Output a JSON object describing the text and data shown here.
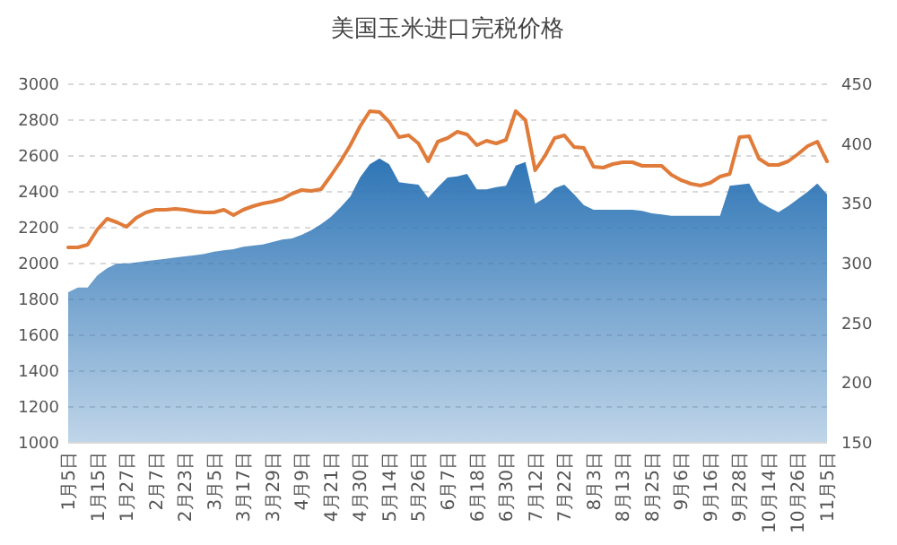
{
  "chart_data": {
    "type": "line",
    "title": "美国玉米进口完税价格",
    "categories": [
      "1月5日",
      null,
      null,
      "1月15日",
      null,
      null,
      "1月27日",
      null,
      null,
      "2月7日",
      null,
      null,
      "2月23日",
      null,
      null,
      "3月5日",
      null,
      null,
      "3月17日",
      null,
      null,
      "3月29日",
      null,
      null,
      "4月9日",
      null,
      null,
      "4月21日",
      null,
      null,
      "4月30日",
      null,
      null,
      "5月14日",
      null,
      null,
      "5月26日",
      null,
      null,
      "6月7日",
      null,
      null,
      "6月18日",
      null,
      null,
      "6月30日",
      null,
      null,
      "7月12日",
      null,
      null,
      "7月22日",
      null,
      null,
      "8月3日",
      null,
      null,
      "8月13日",
      null,
      null,
      "8月25日",
      null,
      null,
      "9月6日",
      null,
      null,
      "9月16日",
      null,
      null,
      "9月28日",
      null,
      null,
      "10月14日",
      null,
      null,
      "10月26日",
      null,
      null,
      "11月5日"
    ],
    "ylim": [
      1000,
      3000
    ],
    "yticks": [
      1000,
      1200,
      1400,
      1600,
      1800,
      2000,
      2200,
      2400,
      2600,
      2800,
      3000
    ],
    "y2lim": [
      150,
      450
    ],
    "y2ticks": [
      150,
      200,
      250,
      300,
      350,
      400,
      450
    ],
    "grid": "y",
    "series": [
      {
        "type": "area",
        "axis": "y2",
        "color": "#2e75b6",
        "values": [
          276,
          280,
          280,
          290,
          296,
          300,
          300,
          301,
          302,
          303,
          304,
          305,
          306,
          307,
          308,
          310,
          311,
          312,
          314,
          315,
          316,
          318,
          320,
          321,
          324,
          328,
          333,
          339,
          347,
          356,
          372,
          383,
          388,
          383,
          368,
          367,
          366,
          355,
          364,
          372,
          373,
          375,
          362,
          362,
          364,
          365,
          382,
          385,
          350,
          355,
          363,
          366,
          358,
          349,
          345,
          345,
          345,
          345,
          345,
          344,
          342,
          341,
          340,
          340,
          340,
          340,
          340,
          340,
          365,
          366,
          367,
          352,
          347,
          343,
          348,
          354,
          360,
          367,
          358
        ]
      },
      {
        "axis": "y",
        "color": "#e07b39",
        "values": [
          2090,
          2090,
          2105,
          2190,
          2250,
          2230,
          2205,
          2255,
          2285,
          2300,
          2300,
          2305,
          2300,
          2290,
          2285,
          2285,
          2300,
          2270,
          2300,
          2320,
          2335,
          2345,
          2360,
          2390,
          2410,
          2405,
          2415,
          2490,
          2570,
          2660,
          2765,
          2850,
          2845,
          2790,
          2705,
          2715,
          2670,
          2570,
          2680,
          2700,
          2735,
          2720,
          2660,
          2685,
          2670,
          2690,
          2850,
          2800,
          2520,
          2600,
          2700,
          2715,
          2650,
          2645,
          2540,
          2535,
          2555,
          2565,
          2565,
          2545,
          2545,
          2545,
          2495,
          2465,
          2445,
          2435,
          2450,
          2485,
          2500,
          2705,
          2710,
          2585,
          2550,
          2550,
          2570,
          2610,
          2655,
          2680,
          2570
        ]
      }
    ]
  }
}
